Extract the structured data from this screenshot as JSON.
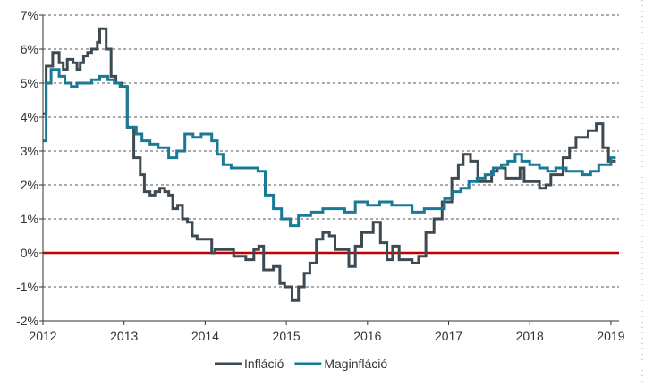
{
  "chart_data": {
    "type": "line",
    "title": "",
    "xlabel": "",
    "ylabel": "",
    "xlim": [
      2012,
      2019.1
    ],
    "ylim": [
      -2,
      7
    ],
    "x_ticks": [
      "2012",
      "2013",
      "2014",
      "2015",
      "2016",
      "2017",
      "2018",
      "2019"
    ],
    "y_ticks": [
      "-2%",
      "-1%",
      "0%",
      "1%",
      "2%",
      "3%",
      "4%",
      "5%",
      "6%",
      "7%"
    ],
    "grid": "horizontal dashed",
    "legend_position": "bottom",
    "zero_line_color": "#c00000",
    "series": [
      {
        "name": "Infláció",
        "color": "#3d4a52",
        "points": [
          [
            2012.0,
            4.1
          ],
          [
            2012.04,
            5.5
          ],
          [
            2012.12,
            5.9
          ],
          [
            2012.2,
            5.6
          ],
          [
            2012.25,
            5.4
          ],
          [
            2012.3,
            5.7
          ],
          [
            2012.37,
            5.6
          ],
          [
            2012.42,
            5.4
          ],
          [
            2012.46,
            5.6
          ],
          [
            2012.5,
            5.8
          ],
          [
            2012.55,
            5.9
          ],
          [
            2012.6,
            6.0
          ],
          [
            2012.67,
            6.2
          ],
          [
            2012.7,
            6.6
          ],
          [
            2012.78,
            6.0
          ],
          [
            2012.84,
            5.2
          ],
          [
            2012.9,
            5.0
          ],
          [
            2012.97,
            4.9
          ],
          [
            2013.04,
            3.7
          ],
          [
            2013.12,
            2.8
          ],
          [
            2013.2,
            2.3
          ],
          [
            2013.25,
            1.8
          ],
          [
            2013.32,
            1.7
          ],
          [
            2013.38,
            1.8
          ],
          [
            2013.44,
            1.9
          ],
          [
            2013.5,
            1.8
          ],
          [
            2013.55,
            1.7
          ],
          [
            2013.6,
            1.3
          ],
          [
            2013.66,
            1.4
          ],
          [
            2013.72,
            1.0
          ],
          [
            2013.78,
            0.9
          ],
          [
            2013.84,
            0.5
          ],
          [
            2013.9,
            0.4
          ],
          [
            2013.97,
            0.4
          ],
          [
            2014.08,
            0.0
          ],
          [
            2014.12,
            0.1
          ],
          [
            2014.35,
            -0.1
          ],
          [
            2014.5,
            -0.2
          ],
          [
            2014.6,
            0.1
          ],
          [
            2014.66,
            0.2
          ],
          [
            2014.72,
            -0.5
          ],
          [
            2014.84,
            -0.4
          ],
          [
            2014.92,
            -0.9
          ],
          [
            2014.98,
            -1.0
          ],
          [
            2015.07,
            -1.4
          ],
          [
            2015.15,
            -1.0
          ],
          [
            2015.22,
            -0.6
          ],
          [
            2015.29,
            -0.3
          ],
          [
            2015.37,
            0.4
          ],
          [
            2015.45,
            0.6
          ],
          [
            2015.53,
            0.5
          ],
          [
            2015.6,
            0.1
          ],
          [
            2015.67,
            0.1
          ],
          [
            2015.77,
            -0.4
          ],
          [
            2015.85,
            0.2
          ],
          [
            2015.93,
            0.6
          ],
          [
            2016.07,
            0.9
          ],
          [
            2016.16,
            0.3
          ],
          [
            2016.24,
            -0.2
          ],
          [
            2016.31,
            0.2
          ],
          [
            2016.39,
            -0.2
          ],
          [
            2016.47,
            -0.2
          ],
          [
            2016.55,
            -0.3
          ],
          [
            2016.63,
            -0.1
          ],
          [
            2016.72,
            0.6
          ],
          [
            2016.82,
            1.0
          ],
          [
            2016.92,
            1.5
          ],
          [
            2017.04,
            2.2
          ],
          [
            2017.12,
            2.6
          ],
          [
            2017.18,
            2.9
          ],
          [
            2017.27,
            2.7
          ],
          [
            2017.36,
            2.1
          ],
          [
            2017.45,
            2.1
          ],
          [
            2017.53,
            2.4
          ],
          [
            2017.6,
            2.5
          ],
          [
            2017.7,
            2.2
          ],
          [
            2017.8,
            2.2
          ],
          [
            2017.88,
            2.5
          ],
          [
            2017.93,
            2.1
          ],
          [
            2017.97,
            2.1
          ],
          [
            2018.04,
            2.1
          ],
          [
            2018.12,
            1.9
          ],
          [
            2018.2,
            2.0
          ],
          [
            2018.26,
            2.3
          ],
          [
            2018.33,
            2.3
          ],
          [
            2018.41,
            2.8
          ],
          [
            2018.49,
            3.1
          ],
          [
            2018.57,
            3.4
          ],
          [
            2018.66,
            3.4
          ],
          [
            2018.72,
            3.6
          ],
          [
            2018.82,
            3.8
          ],
          [
            2018.9,
            3.1
          ],
          [
            2018.97,
            2.7
          ],
          [
            2019.06,
            2.7
          ]
        ]
      },
      {
        "name": "Maginfláció",
        "color": "#1a7a96",
        "points": [
          [
            2012.0,
            3.3
          ],
          [
            2012.04,
            5.0
          ],
          [
            2012.1,
            5.4
          ],
          [
            2012.2,
            5.2
          ],
          [
            2012.27,
            5.0
          ],
          [
            2012.35,
            4.9
          ],
          [
            2012.42,
            5.0
          ],
          [
            2012.5,
            5.0
          ],
          [
            2012.6,
            5.1
          ],
          [
            2012.7,
            5.2
          ],
          [
            2012.8,
            5.1
          ],
          [
            2012.88,
            5.0
          ],
          [
            2012.95,
            4.9
          ],
          [
            2013.04,
            3.7
          ],
          [
            2013.15,
            3.5
          ],
          [
            2013.22,
            3.3
          ],
          [
            2013.32,
            3.2
          ],
          [
            2013.42,
            3.1
          ],
          [
            2013.55,
            2.8
          ],
          [
            2013.65,
            3.0
          ],
          [
            2013.75,
            3.5
          ],
          [
            2013.85,
            3.4
          ],
          [
            2013.95,
            3.5
          ],
          [
            2014.08,
            3.3
          ],
          [
            2014.15,
            2.9
          ],
          [
            2014.22,
            2.6
          ],
          [
            2014.32,
            2.5
          ],
          [
            2014.5,
            2.5
          ],
          [
            2014.65,
            2.4
          ],
          [
            2014.74,
            1.7
          ],
          [
            2014.84,
            1.3
          ],
          [
            2014.94,
            1.0
          ],
          [
            2015.05,
            0.8
          ],
          [
            2015.15,
            1.1
          ],
          [
            2015.3,
            1.2
          ],
          [
            2015.45,
            1.3
          ],
          [
            2015.6,
            1.3
          ],
          [
            2015.72,
            1.2
          ],
          [
            2015.85,
            1.5
          ],
          [
            2016.0,
            1.4
          ],
          [
            2016.15,
            1.5
          ],
          [
            2016.3,
            1.4
          ],
          [
            2016.42,
            1.4
          ],
          [
            2016.55,
            1.2
          ],
          [
            2016.7,
            1.3
          ],
          [
            2016.85,
            1.3
          ],
          [
            2016.95,
            1.6
          ],
          [
            2017.05,
            1.8
          ],
          [
            2017.15,
            1.9
          ],
          [
            2017.25,
            2.1
          ],
          [
            2017.35,
            2.2
          ],
          [
            2017.45,
            2.3
          ],
          [
            2017.55,
            2.5
          ],
          [
            2017.65,
            2.6
          ],
          [
            2017.73,
            2.7
          ],
          [
            2017.82,
            2.9
          ],
          [
            2017.9,
            2.7
          ],
          [
            2018.0,
            2.6
          ],
          [
            2018.12,
            2.5
          ],
          [
            2018.22,
            2.4
          ],
          [
            2018.32,
            2.5
          ],
          [
            2018.45,
            2.4
          ],
          [
            2018.55,
            2.4
          ],
          [
            2018.65,
            2.3
          ],
          [
            2018.75,
            2.4
          ],
          [
            2018.85,
            2.6
          ],
          [
            2018.93,
            2.6
          ],
          [
            2019.0,
            2.8
          ],
          [
            2019.06,
            2.8
          ]
        ]
      }
    ]
  }
}
